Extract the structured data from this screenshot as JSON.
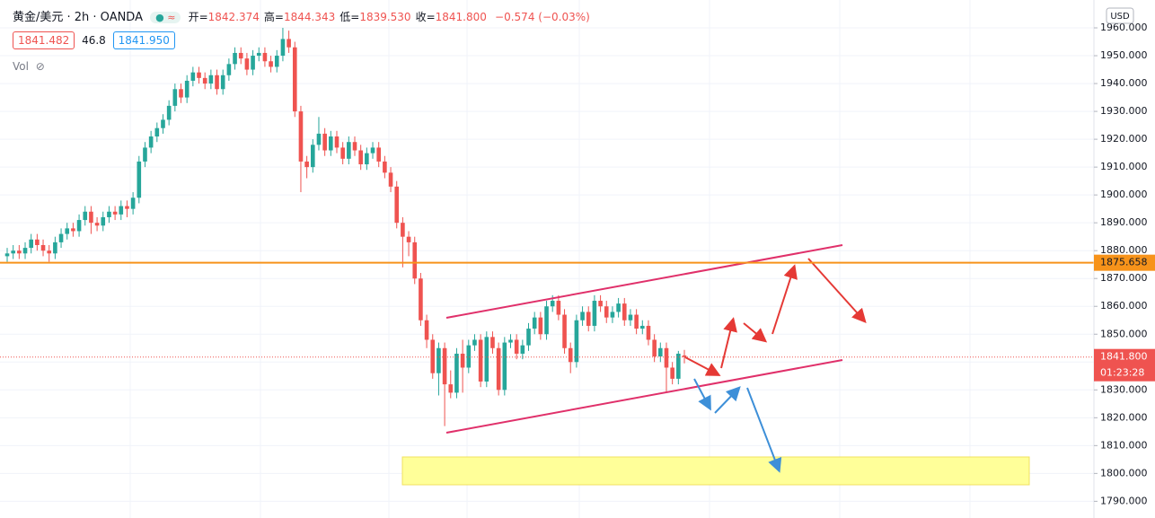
{
  "header": {
    "symbol": "黄金/美元 · 2h · OANDA",
    "ohlc": [
      [
        "开=",
        "1842.374"
      ],
      [
        "高=",
        "1844.343"
      ],
      [
        "低=",
        "1839.530"
      ],
      [
        "收=",
        "1841.800"
      ]
    ],
    "change": "−0.574 (−0.03%)",
    "bid": "1841.482",
    "spread": "46.8",
    "ask": "1841.950",
    "volume": "Vol",
    "currency": "USD"
  },
  "chart_data": {
    "type": "candlestick",
    "up_color": "#26a69a",
    "down_color": "#ef5350",
    "open": [
      1878,
      1879,
      1880,
      1879,
      1881,
      1884,
      1882,
      1880,
      1879,
      1883,
      1886,
      1888,
      1887,
      1891,
      1894,
      1890,
      1889,
      1892,
      1894,
      1893,
      1896,
      1895,
      1899,
      1912,
      1917,
      1921,
      1924,
      1927,
      1932,
      1938,
      1935,
      1941,
      1944,
      1942,
      1940,
      1943,
      1938,
      1943,
      1947,
      1951,
      1949,
      1945,
      1950,
      1951,
      1948,
      1946,
      1950,
      1956,
      1953,
      1930,
      1912,
      1910,
      1918,
      1922,
      1916,
      1921,
      1917,
      1913,
      1919,
      1916,
      1911,
      1915,
      1917,
      1912,
      1908,
      1903,
      1890,
      1885,
      1883,
      1870,
      1855,
      1848,
      1836,
      1845,
      1832,
      1829,
      1843,
      1838,
      1846,
      1848,
      1833,
      1849,
      1845,
      1830,
      1847,
      1848,
      1843,
      1846,
      1852,
      1856,
      1850,
      1860,
      1862,
      1857,
      1845,
      1840,
      1855,
      1858,
      1853,
      1862,
      1860,
      1856,
      1858,
      1861,
      1855,
      1857,
      1852,
      1853,
      1848,
      1842,
      1845,
      1838,
      1834,
      1842.374
    ],
    "high": [
      1881,
      1882,
      1882,
      1883,
      1886,
      1886,
      1884,
      1882,
      1885,
      1888,
      1890,
      1890,
      1893,
      1896,
      1896,
      1892,
      1894,
      1896,
      1896,
      1898,
      1898,
      1901,
      1914,
      1919,
      1923,
      1926,
      1929,
      1934,
      1940,
      1940,
      1943,
      1946,
      1946,
      1944,
      1945,
      1945,
      1945,
      1949,
      1953,
      1953,
      1951,
      1952,
      1953,
      1953,
      1950,
      1952,
      1960,
      1959,
      1955,
      1932,
      1914,
      1920,
      1928,
      1924,
      1923,
      1923,
      1919,
      1921,
      1921,
      1918,
      1917,
      1919,
      1919,
      1914,
      1910,
      1905,
      1892,
      1887,
      1885,
      1872,
      1857,
      1850,
      1847,
      1847,
      1837,
      1845,
      1848,
      1848,
      1850,
      1850,
      1851,
      1851,
      1847,
      1849,
      1850,
      1850,
      1848,
      1854,
      1858,
      1858,
      1862,
      1864,
      1864,
      1859,
      1847,
      1857,
      1860,
      1860,
      1864,
      1864,
      1862,
      1860,
      1863,
      1863,
      1859,
      1859,
      1855,
      1855,
      1850,
      1847,
      1847,
      1840,
      1844,
      1844.343
    ],
    "low": [
      1876,
      1877,
      1877,
      1877,
      1879,
      1880,
      1878,
      1876,
      1877,
      1881,
      1884,
      1885,
      1885,
      1889,
      1886,
      1887,
      1887,
      1890,
      1891,
      1891,
      1892,
      1893,
      1897,
      1910,
      1915,
      1919,
      1922,
      1925,
      1930,
      1933,
      1933,
      1939,
      1940,
      1938,
      1938,
      1936,
      1936,
      1941,
      1945,
      1947,
      1943,
      1943,
      1948,
      1946,
      1944,
      1944,
      1948,
      1951,
      1928,
      1901,
      1906,
      1908,
      1916,
      1914,
      1914,
      1915,
      1911,
      1911,
      1914,
      1909,
      1909,
      1913,
      1910,
      1906,
      1901,
      1888,
      1874,
      1878,
      1868,
      1853,
      1845,
      1834,
      1828,
      1817,
      1827,
      1827,
      1829,
      1836,
      1844,
      1831,
      1831,
      1843,
      1828,
      1828,
      1845,
      1841,
      1841,
      1844,
      1850,
      1848,
      1848,
      1858,
      1855,
      1843,
      1836,
      1838,
      1853,
      1851,
      1851,
      1858,
      1854,
      1854,
      1856,
      1853,
      1853,
      1850,
      1850,
      1846,
      1840,
      1840,
      1829,
      1832,
      1832,
      1839.53
    ],
    "close": [
      1879,
      1880,
      1879,
      1881,
      1884,
      1882,
      1880,
      1879,
      1883,
      1886,
      1888,
      1887,
      1891,
      1894,
      1890,
      1889,
      1892,
      1894,
      1893,
      1896,
      1895,
      1899,
      1912,
      1917,
      1921,
      1924,
      1927,
      1932,
      1938,
      1935,
      1941,
      1944,
      1942,
      1940,
      1943,
      1938,
      1943,
      1947,
      1951,
      1949,
      1945,
      1950,
      1951,
      1948,
      1946,
      1950,
      1956,
      1953,
      1930,
      1912,
      1910,
      1918,
      1922,
      1916,
      1921,
      1917,
      1913,
      1919,
      1916,
      1911,
      1915,
      1917,
      1912,
      1908,
      1903,
      1890,
      1885,
      1883,
      1870,
      1855,
      1848,
      1836,
      1845,
      1832,
      1829,
      1843,
      1838,
      1846,
      1848,
      1833,
      1849,
      1845,
      1830,
      1847,
      1848,
      1843,
      1846,
      1852,
      1856,
      1850,
      1860,
      1862,
      1857,
      1845,
      1840,
      1855,
      1858,
      1853,
      1862,
      1860,
      1856,
      1858,
      1861,
      1855,
      1857,
      1852,
      1853,
      1848,
      1842,
      1845,
      1838,
      1834,
      1843,
      1841.8
    ],
    "ylim": [
      1784,
      1970
    ],
    "yticks": [
      {
        "value": 1960,
        "label": "1960.000"
      },
      {
        "value": 1950,
        "label": "1950.000"
      },
      {
        "value": 1940,
        "label": "1940.000"
      },
      {
        "value": 1930,
        "label": "1930.000"
      },
      {
        "value": 1920,
        "label": "1920.000"
      },
      {
        "value": 1910,
        "label": "1910.000"
      },
      {
        "value": 1900,
        "label": "1900.000"
      },
      {
        "value": 1890,
        "label": "1890.000"
      },
      {
        "value": 1880,
        "label": "1880.000"
      },
      {
        "value": 1870,
        "label": "1870.000"
      },
      {
        "value": 1860,
        "label": "1860.000"
      },
      {
        "value": 1850,
        "label": "1850.000"
      },
      {
        "value": 1840,
        "label": "1840.000"
      },
      {
        "value": 1830,
        "label": "1830.000"
      },
      {
        "value": 1820,
        "label": "1820.000"
      },
      {
        "value": 1810,
        "label": "1810.000"
      },
      {
        "value": 1800,
        "label": "1800.000"
      },
      {
        "value": 1790,
        "label": "1790.000"
      }
    ],
    "grid": true,
    "lines": [
      {
        "value": 1875.658,
        "label": "1875.658",
        "color": "#f7931a"
      }
    ],
    "last_price": {
      "value": 1841.8,
      "label": "1841.800",
      "countdown": "01:23:28",
      "color": "#ef5350"
    }
  }
}
